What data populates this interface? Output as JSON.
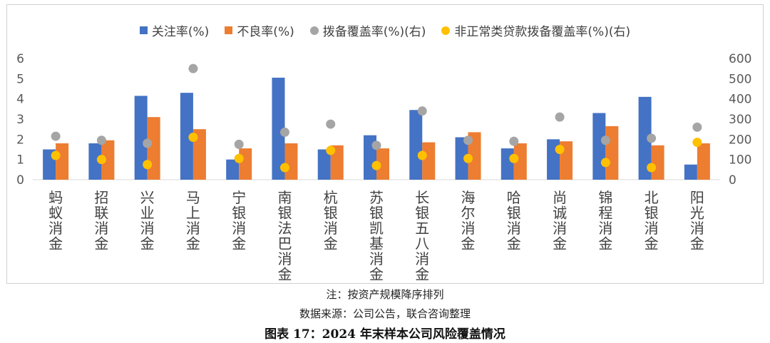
{
  "chart_data": {
    "type": "bar",
    "title": "",
    "categories": [
      "蚂蚁消金",
      "招联消金",
      "兴业消金",
      "马上消金",
      "宁银消金",
      "南银法巴消金",
      "杭银消金",
      "苏银凯基消金",
      "长银五八消金",
      "海尔消金",
      "哈银消金",
      "尚诚消金",
      "锦程消金",
      "北银消金",
      "阳光消金"
    ],
    "series": [
      {
        "name": "关注率(%)",
        "kind": "bar",
        "axis": "left",
        "color": "#4472C4",
        "values": [
          1.5,
          1.8,
          4.15,
          4.3,
          1.0,
          5.05,
          1.5,
          2.2,
          3.45,
          2.1,
          1.55,
          2.0,
          3.3,
          4.1,
          0.75
        ]
      },
      {
        "name": "不良率(%)",
        "kind": "bar",
        "axis": "left",
        "color": "#ED7D31",
        "values": [
          1.8,
          1.95,
          3.1,
          2.5,
          1.55,
          1.8,
          1.7,
          1.55,
          1.85,
          2.35,
          1.8,
          1.9,
          2.65,
          1.7,
          1.8
        ]
      },
      {
        "name": "拨备覆盖率(%)(右)",
        "kind": "dot",
        "axis": "right",
        "color": "#A5A5A5",
        "values": [
          215,
          195,
          180,
          550,
          175,
          235,
          275,
          170,
          340,
          195,
          190,
          310,
          195,
          205,
          260
        ]
      },
      {
        "name": "非正常类贷款拨备覆盖率(%)(右)",
        "kind": "dot",
        "axis": "right",
        "color": "#FFC000",
        "values": [
          120,
          100,
          75,
          210,
          105,
          60,
          145,
          70,
          120,
          105,
          105,
          150,
          85,
          60,
          185
        ]
      }
    ],
    "ylim_left": [
      0,
      6
    ],
    "yticks_left": [
      "0",
      "1",
      "2",
      "3",
      "4",
      "5",
      "6"
    ],
    "ylim_right": [
      0,
      600
    ],
    "yticks_right": [
      "0",
      "100",
      "200",
      "300",
      "400",
      "500",
      "600"
    ],
    "xlabel": "",
    "ylabel": "",
    "legend_position": "top"
  },
  "notes": {
    "note": "注：按资产规模降序排列",
    "source": "数据来源：公司公告，联合咨询整理",
    "figure_title": "图表 17：2024 年末样本公司风险覆盖情况"
  }
}
